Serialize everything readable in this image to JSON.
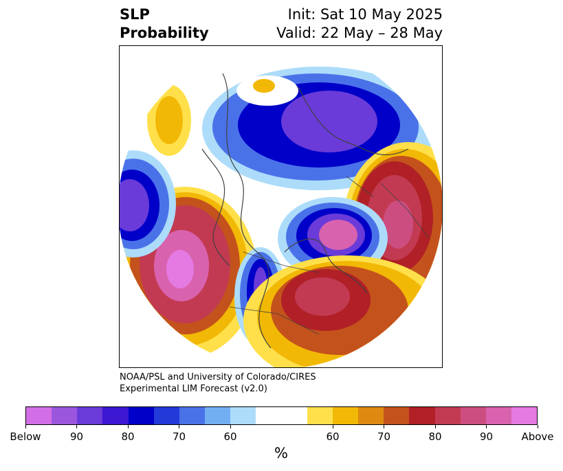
{
  "title": {
    "left_line1": "SLP",
    "left_line2": "Probability",
    "init": "Init: Sat 10 May 2025",
    "valid": "Valid: 22 May – 28 May"
  },
  "credit": {
    "line1": "NOAA/PSL and University of Colorado/CIRES",
    "line2": "Experimental LIM Forecast (v2.0)"
  },
  "colorbar": {
    "label": "%",
    "colors": [
      "#d36fe6",
      "#9a57de",
      "#6a3bd8",
      "#3c17d2",
      "#0000c8",
      "#2339d8",
      "#4a72e8",
      "#72aef2",
      "#acdcfa",
      "#ffffff",
      "#ffffff",
      "#ffe04a",
      "#f2b806",
      "#de8a10",
      "#c4521c",
      "#b02026",
      "#c23a52",
      "#cc4e80",
      "#d962ae",
      "#e47ae2"
    ],
    "tick_labels": [
      "Below",
      "90",
      "80",
      "70",
      "60",
      "60",
      "70",
      "80",
      "90",
      "Above"
    ]
  },
  "map_colors": {
    "below_strong": "#6a3bd8",
    "below_mid": "#0000c8",
    "below_light": "#4a72e8",
    "below_faint": "#acdcfa",
    "above_faint": "#ffe04a",
    "above_light": "#f2b806",
    "above_mid": "#c4521c",
    "above_strong": "#c23a52",
    "above_max": "#e47ae2"
  }
}
